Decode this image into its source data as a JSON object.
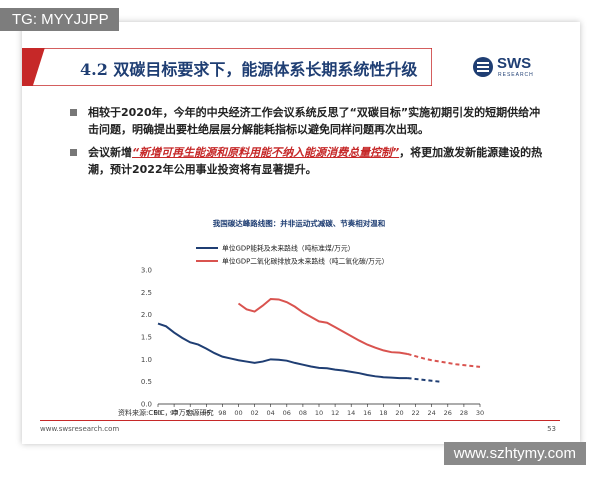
{
  "overlay": {
    "tag": "TG: MYYJJPP",
    "watermark": "www.szhtymy.com"
  },
  "slide": {
    "title": "4.2 双碳目标要求下，能源体系长期系统性升级",
    "logo": {
      "name": "SWS",
      "sub": "RESEARCH"
    },
    "bullets": [
      {
        "text": "相较于2020年，今年的中央经济工作会议系统反思了“双碳目标”实施初期引发的短期供给冲击问题，明确提出要杜绝层层分解能耗指标以避免同样问题再次出现。"
      },
      {
        "pre": "会议新增",
        "highlight": "“新增可再生能源和原料用能不纳入能源消费总量控制”",
        "post": "，将更加激发新能源建设的热潮，预计2022年公用事业投资将有显著提升。"
      }
    ],
    "source": "资料来源:CEIC，申万宏源研究",
    "footer_url": "www.swsresearch.com",
    "page_number": "53"
  },
  "colors": {
    "navy": "#1f3e73",
    "red": "#c62828",
    "series_energy": "#1f3e73",
    "series_co2": "#d9534f"
  },
  "chart_data": {
    "type": "line",
    "title": "我国碳达峰路线图：并非运动式减碳、节奏相对温和",
    "ylim": [
      0,
      3.0
    ],
    "yticks": [
      "0.0",
      "0.5",
      "1.0",
      "1.5",
      "2.0",
      "2.5",
      "3.0"
    ],
    "xticks": [
      "90",
      "92",
      "94",
      "96",
      "98",
      "00",
      "02",
      "04",
      "06",
      "08",
      "10",
      "12",
      "14",
      "16",
      "18",
      "20",
      "22",
      "24",
      "26",
      "28",
      "30"
    ],
    "series": [
      {
        "name": "单位GDP能耗及未来路线（吨标准煤/万元）",
        "actual_x": [
          1990,
          1991,
          1992,
          1993,
          1994,
          1995,
          1996,
          1997,
          1998,
          1999,
          2000,
          2001,
          2002,
          2003,
          2004,
          2005,
          2006,
          2007,
          2008,
          2009,
          2010,
          2011,
          2012,
          2013,
          2014,
          2015,
          2016,
          2017,
          2018,
          2019,
          2020,
          2021
        ],
        "actual_y": [
          1.8,
          1.74,
          1.6,
          1.48,
          1.38,
          1.33,
          1.24,
          1.14,
          1.06,
          1.02,
          0.98,
          0.95,
          0.92,
          0.95,
          1.0,
          0.99,
          0.97,
          0.92,
          0.88,
          0.84,
          0.81,
          0.8,
          0.77,
          0.75,
          0.72,
          0.69,
          0.65,
          0.62,
          0.6,
          0.59,
          0.58,
          0.58
        ],
        "projected_x": [
          2021,
          2022,
          2023,
          2024,
          2025
        ],
        "projected_y": [
          0.58,
          0.56,
          0.54,
          0.52,
          0.5
        ]
      },
      {
        "name": "单位GDP二氧化碳排放及未来路线（吨二氧化碳/万元）",
        "actual_x": [
          2000,
          2001,
          2002,
          2003,
          2004,
          2005,
          2006,
          2007,
          2008,
          2009,
          2010,
          2011,
          2012,
          2013,
          2014,
          2015,
          2016,
          2017,
          2018,
          2019,
          2020,
          2021
        ],
        "actual_y": [
          2.25,
          2.12,
          2.07,
          2.2,
          2.35,
          2.34,
          2.28,
          2.18,
          2.05,
          1.95,
          1.85,
          1.82,
          1.72,
          1.62,
          1.52,
          1.42,
          1.33,
          1.26,
          1.2,
          1.16,
          1.15,
          1.12
        ],
        "projected_x": [
          2021,
          2022,
          2023,
          2024,
          2025,
          2026,
          2027,
          2028,
          2029,
          2030
        ],
        "projected_y": [
          1.12,
          1.07,
          1.02,
          0.98,
          0.95,
          0.92,
          0.89,
          0.87,
          0.85,
          0.83
        ]
      }
    ]
  }
}
